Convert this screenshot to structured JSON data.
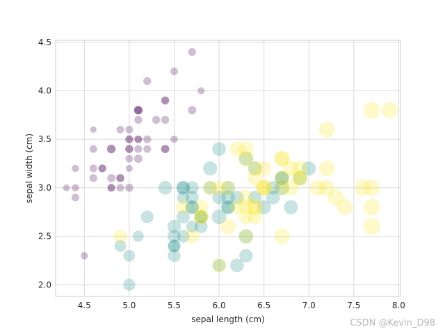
{
  "chart_data": {
    "type": "scatter",
    "title": "",
    "xlabel": "sepal length (cm)",
    "ylabel": "sepal width (cm)",
    "xlim": [
      4.18,
      8.02
    ],
    "ylim": [
      1.88,
      4.52
    ],
    "xticks": [
      "4.5",
      "5.0",
      "5.5",
      "6.0",
      "6.5",
      "7.0",
      "7.5",
      "8.0"
    ],
    "yticks": [
      "2.0",
      "2.5",
      "3.0",
      "3.5",
      "4.0",
      "4.5"
    ],
    "grid": true,
    "alpha": 0.25,
    "size_encoding": "petal length (cm)",
    "color_encoding": "species",
    "series": [
      {
        "color": "#440154",
        "points": [
          [
            5.1,
            3.5,
            1.4
          ],
          [
            4.9,
            3.0,
            1.4
          ],
          [
            4.7,
            3.2,
            1.3
          ],
          [
            4.6,
            3.1,
            1.5
          ],
          [
            5.0,
            3.6,
            1.4
          ],
          [
            5.4,
            3.9,
            1.7
          ],
          [
            4.6,
            3.4,
            1.4
          ],
          [
            5.0,
            3.4,
            1.5
          ],
          [
            4.4,
            2.9,
            1.4
          ],
          [
            4.9,
            3.1,
            1.5
          ],
          [
            5.4,
            3.7,
            1.5
          ],
          [
            4.8,
            3.4,
            1.6
          ],
          [
            4.8,
            3.0,
            1.4
          ],
          [
            4.3,
            3.0,
            1.1
          ],
          [
            5.8,
            4.0,
            1.2
          ],
          [
            5.7,
            4.4,
            1.5
          ],
          [
            5.4,
            3.9,
            1.3
          ],
          [
            5.1,
            3.5,
            1.4
          ],
          [
            5.7,
            3.8,
            1.7
          ],
          [
            5.1,
            3.8,
            1.5
          ],
          [
            5.4,
            3.4,
            1.7
          ],
          [
            5.1,
            3.7,
            1.5
          ],
          [
            4.6,
            3.6,
            1.0
          ],
          [
            5.1,
            3.3,
            1.7
          ],
          [
            4.8,
            3.4,
            1.9
          ],
          [
            5.0,
            3.0,
            1.6
          ],
          [
            5.0,
            3.4,
            1.6
          ],
          [
            5.2,
            3.5,
            1.5
          ],
          [
            5.2,
            3.4,
            1.4
          ],
          [
            4.7,
            3.2,
            1.6
          ],
          [
            4.8,
            3.1,
            1.6
          ],
          [
            5.4,
            3.4,
            1.5
          ],
          [
            5.2,
            4.1,
            1.5
          ],
          [
            5.5,
            4.2,
            1.4
          ],
          [
            4.9,
            3.1,
            1.5
          ],
          [
            5.0,
            3.2,
            1.2
          ],
          [
            5.5,
            3.5,
            1.3
          ],
          [
            4.9,
            3.6,
            1.4
          ],
          [
            4.4,
            3.0,
            1.3
          ],
          [
            5.1,
            3.4,
            1.5
          ],
          [
            5.0,
            3.5,
            1.3
          ],
          [
            4.5,
            2.3,
            1.3
          ],
          [
            4.4,
            3.2,
            1.3
          ],
          [
            5.0,
            3.5,
            1.6
          ],
          [
            5.1,
            3.8,
            1.9
          ],
          [
            4.8,
            3.0,
            1.4
          ],
          [
            5.1,
            3.8,
            1.6
          ],
          [
            4.6,
            3.2,
            1.4
          ],
          [
            5.3,
            3.7,
            1.5
          ],
          [
            5.0,
            3.3,
            1.4
          ]
        ]
      },
      {
        "color": "#21918c",
        "points": [
          [
            7.0,
            3.2,
            4.7
          ],
          [
            6.4,
            3.2,
            4.5
          ],
          [
            6.9,
            3.1,
            4.9
          ],
          [
            5.5,
            2.3,
            4.0
          ],
          [
            6.5,
            2.8,
            4.6
          ],
          [
            5.7,
            2.8,
            4.5
          ],
          [
            6.3,
            3.3,
            4.7
          ],
          [
            4.9,
            2.4,
            3.3
          ],
          [
            6.6,
            2.9,
            4.6
          ],
          [
            5.2,
            2.7,
            3.9
          ],
          [
            5.0,
            2.0,
            3.5
          ],
          [
            5.9,
            3.0,
            4.2
          ],
          [
            6.0,
            2.2,
            4.0
          ],
          [
            6.1,
            2.9,
            4.7
          ],
          [
            5.6,
            2.9,
            3.6
          ],
          [
            6.7,
            3.1,
            4.4
          ],
          [
            5.6,
            3.0,
            4.5
          ],
          [
            5.8,
            2.7,
            4.1
          ],
          [
            6.2,
            2.2,
            4.5
          ],
          [
            5.6,
            2.5,
            3.9
          ],
          [
            5.9,
            3.2,
            4.8
          ],
          [
            6.1,
            2.8,
            4.0
          ],
          [
            6.3,
            2.5,
            4.9
          ],
          [
            6.1,
            2.8,
            4.7
          ],
          [
            6.4,
            2.9,
            4.3
          ],
          [
            6.6,
            3.0,
            4.4
          ],
          [
            6.8,
            2.8,
            4.8
          ],
          [
            6.7,
            3.0,
            5.0
          ],
          [
            6.0,
            2.9,
            4.5
          ],
          [
            5.7,
            2.6,
            3.5
          ],
          [
            5.5,
            2.4,
            3.8
          ],
          [
            5.5,
            2.4,
            3.7
          ],
          [
            5.8,
            2.7,
            3.9
          ],
          [
            6.0,
            2.7,
            5.1
          ],
          [
            5.4,
            3.0,
            4.5
          ],
          [
            6.0,
            3.4,
            4.5
          ],
          [
            6.7,
            3.1,
            4.7
          ],
          [
            6.3,
            2.3,
            4.4
          ],
          [
            5.6,
            3.0,
            4.1
          ],
          [
            5.5,
            2.5,
            4.0
          ],
          [
            5.5,
            2.6,
            4.4
          ],
          [
            6.1,
            3.0,
            4.6
          ],
          [
            5.8,
            2.6,
            4.0
          ],
          [
            5.0,
            2.3,
            3.3
          ],
          [
            5.6,
            2.7,
            4.2
          ],
          [
            5.7,
            3.0,
            4.2
          ],
          [
            5.7,
            2.9,
            4.2
          ],
          [
            6.2,
            2.9,
            4.3
          ],
          [
            5.1,
            2.5,
            3.0
          ],
          [
            5.7,
            2.8,
            4.1
          ]
        ]
      },
      {
        "color": "#fde725",
        "points": [
          [
            6.3,
            3.3,
            6.0
          ],
          [
            5.8,
            2.7,
            5.1
          ],
          [
            7.1,
            3.0,
            5.9
          ],
          [
            6.3,
            2.9,
            5.6
          ],
          [
            6.5,
            3.0,
            5.8
          ],
          [
            7.6,
            3.0,
            6.6
          ],
          [
            4.9,
            2.5,
            4.5
          ],
          [
            7.3,
            2.9,
            6.3
          ],
          [
            6.7,
            2.5,
            5.8
          ],
          [
            7.2,
            3.6,
            6.1
          ],
          [
            6.5,
            3.2,
            5.1
          ],
          [
            6.4,
            2.7,
            5.3
          ],
          [
            6.8,
            3.0,
            5.5
          ],
          [
            5.7,
            2.5,
            5.0
          ],
          [
            5.8,
            2.8,
            5.1
          ],
          [
            6.4,
            3.2,
            5.3
          ],
          [
            6.5,
            3.0,
            5.5
          ],
          [
            7.7,
            3.8,
            6.7
          ],
          [
            7.7,
            2.6,
            6.9
          ],
          [
            6.0,
            2.2,
            5.0
          ],
          [
            6.9,
            3.2,
            5.7
          ],
          [
            5.6,
            2.8,
            4.9
          ],
          [
            7.7,
            2.8,
            6.7
          ],
          [
            6.3,
            2.7,
            4.9
          ],
          [
            6.7,
            3.3,
            5.7
          ],
          [
            7.2,
            3.2,
            6.0
          ],
          [
            6.2,
            2.8,
            4.8
          ],
          [
            6.1,
            3.0,
            4.9
          ],
          [
            6.4,
            2.8,
            5.6
          ],
          [
            7.2,
            3.0,
            5.8
          ],
          [
            7.4,
            2.8,
            6.1
          ],
          [
            7.9,
            3.8,
            6.4
          ],
          [
            6.4,
            2.8,
            5.6
          ],
          [
            6.3,
            2.8,
            5.1
          ],
          [
            6.1,
            2.6,
            5.6
          ],
          [
            7.7,
            3.0,
            6.1
          ],
          [
            6.3,
            3.4,
            5.6
          ],
          [
            6.4,
            3.1,
            5.5
          ],
          [
            6.0,
            3.0,
            4.8
          ],
          [
            6.9,
            3.1,
            5.4
          ],
          [
            6.7,
            3.1,
            5.6
          ],
          [
            6.9,
            3.1,
            5.1
          ],
          [
            5.8,
            2.7,
            5.1
          ],
          [
            6.8,
            3.2,
            5.9
          ],
          [
            6.7,
            3.3,
            5.7
          ],
          [
            6.7,
            3.0,
            5.2
          ],
          [
            6.3,
            2.5,
            5.0
          ],
          [
            6.5,
            3.0,
            5.2
          ],
          [
            6.2,
            3.4,
            5.4
          ],
          [
            5.9,
            3.0,
            5.1
          ]
        ]
      }
    ]
  },
  "watermark": "CSDN @Kevin_D98"
}
